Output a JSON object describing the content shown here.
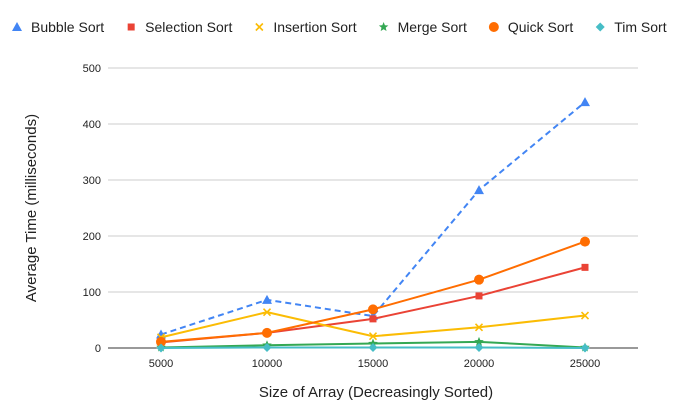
{
  "chart_data": {
    "type": "line",
    "title": "",
    "xlabel": "Size of Array (Decreasingly Sorted)",
    "ylabel": "Average Time (milliseconds)",
    "categories": [
      "5000",
      "10000",
      "15000",
      "20000",
      "25000"
    ],
    "ylim": [
      0,
      500
    ],
    "yticks": [
      "0",
      "100",
      "200",
      "300",
      "400",
      "500"
    ],
    "grid": "horizontal",
    "legend_position": "top",
    "series": [
      {
        "name": "Bubble Sort",
        "values": [
          24,
          86,
          57,
          282,
          439
        ],
        "color": "#4285f4",
        "marker": "triangle",
        "dashed": true
      },
      {
        "name": "Selection Sort",
        "values": [
          10,
          27,
          52,
          93,
          144
        ],
        "color": "#ea4335",
        "marker": "square",
        "dashed": false
      },
      {
        "name": "Insertion Sort",
        "values": [
          19,
          64,
          21,
          37,
          58
        ],
        "color": "#fbbc04",
        "marker": "x",
        "dashed": false
      },
      {
        "name": "Merge Sort",
        "values": [
          1,
          5,
          8,
          11,
          1
        ],
        "color": "#34a853",
        "marker": "star",
        "dashed": false
      },
      {
        "name": "Quick Sort",
        "values": [
          11,
          27,
          69,
          122,
          190
        ],
        "color": "#ff6d01",
        "marker": "circle",
        "dashed": false
      },
      {
        "name": "Tim Sort",
        "values": [
          0,
          1,
          1,
          1,
          0
        ],
        "color": "#46bdc6",
        "marker": "diamond",
        "dashed": false
      }
    ]
  }
}
